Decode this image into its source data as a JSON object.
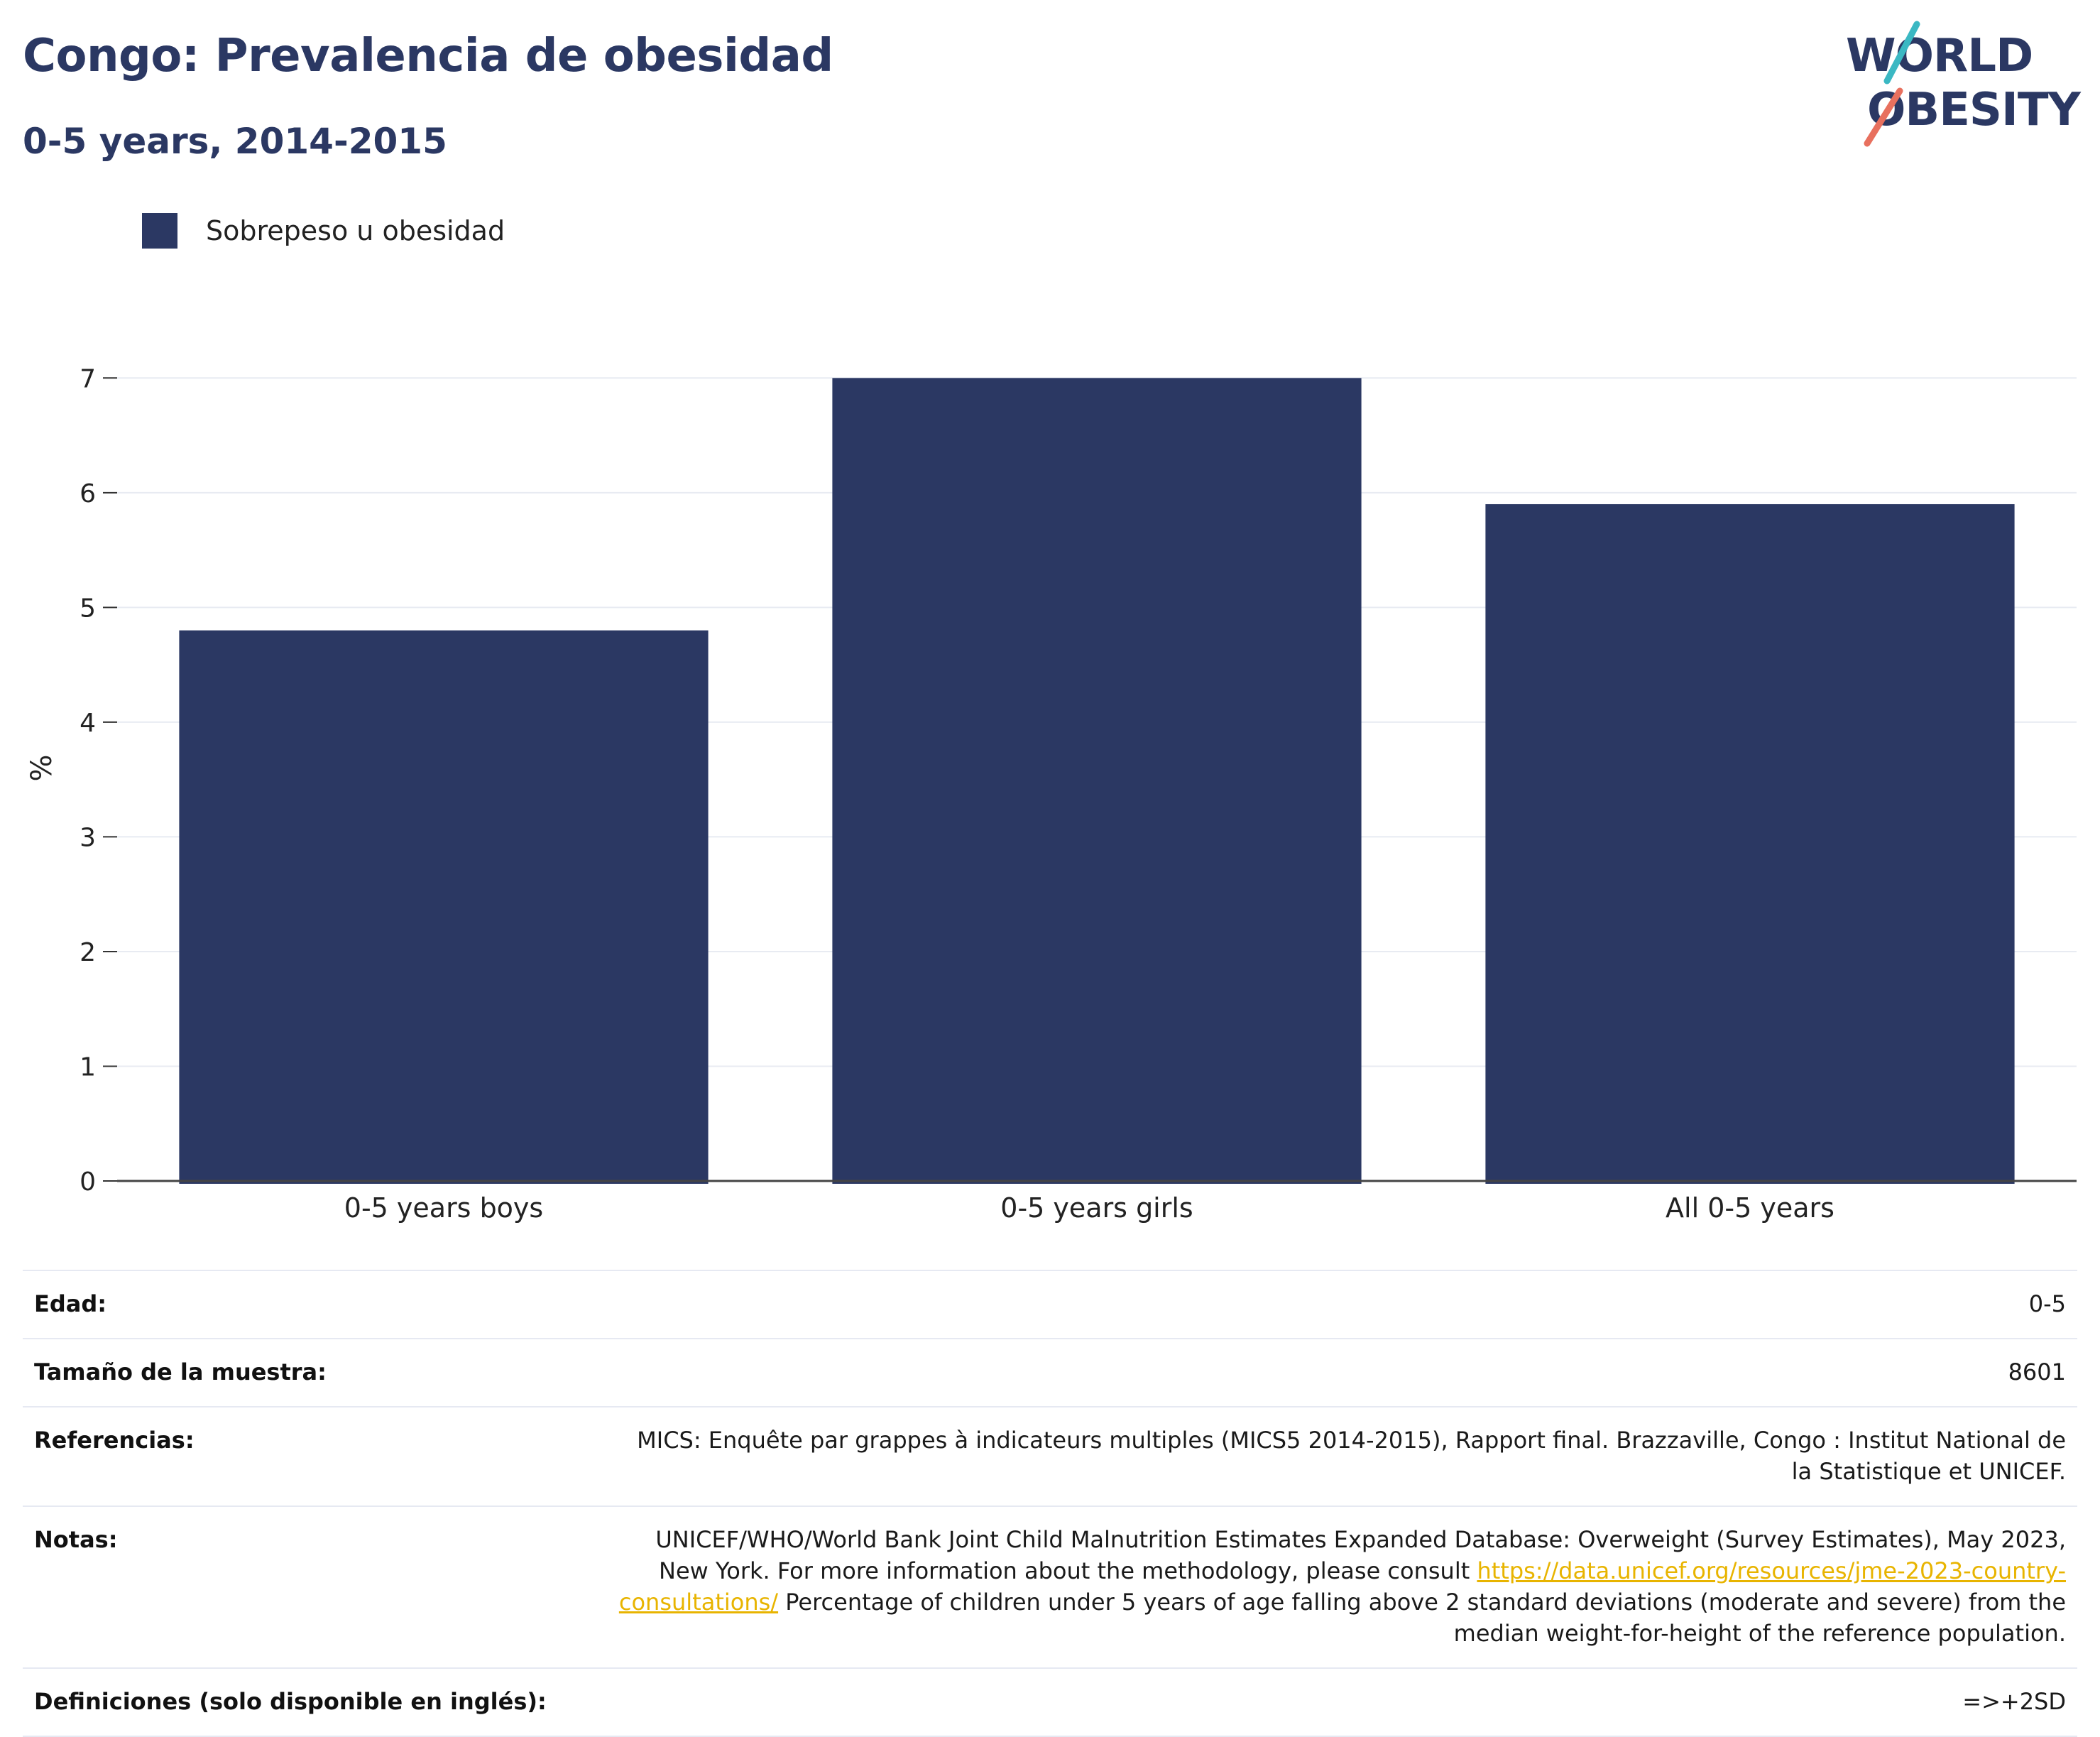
{
  "header": {
    "title": "Congo: Prevalencia de obesidad",
    "subtitle": "0-5 years, 2014-2015"
  },
  "logo": {
    "line1": "WORLD",
    "line2": "OBESITY",
    "colors": {
      "navy": "#2b3863",
      "teal": "#3bb8c3",
      "coral": "#e8705e"
    }
  },
  "chart_data": {
    "type": "bar",
    "categories": [
      "0-5 years boys",
      "0-5 years girls",
      "All 0-5 years"
    ],
    "series": [
      {
        "name": "Sobrepeso u obesidad",
        "values": [
          4.8,
          7.0,
          5.9
        ],
        "color": "#2b3863"
      }
    ],
    "title": "",
    "xlabel": "",
    "ylabel": "%",
    "ylim": [
      0,
      7.2
    ],
    "yticks": [
      0,
      1,
      2,
      3,
      4,
      5,
      6,
      7
    ],
    "grid": true,
    "legend": "top-left"
  },
  "info": {
    "rows": [
      {
        "label": "Edad:",
        "value": "0-5"
      },
      {
        "label": "Tamaño de la muestra:",
        "value": "8601"
      },
      {
        "label": "Referencias:",
        "value": "MICS: Enquête par grappes à indicateurs multiples (MICS5 2014-2015), Rapport final. Brazzaville, Congo : Institut National de la Statistique et UNICEF."
      },
      {
        "label": "Notas:",
        "value_before": "UNICEF/WHO/World Bank Joint Child Malnutrition Estimates Expanded Database: Overweight (Survey Estimates), May 2023, New York. For more information about the methodology, please consult ",
        "link": "https://data.unicef.org/resources/jme-2023-country-consultations/",
        "value_after": " Percentage of children under 5 years of age falling above 2 standard deviations (moderate and severe) from the median weight-for-height of the reference population."
      },
      {
        "label": "Definiciones (solo disponible en inglés):",
        "value": "=>+2SD"
      }
    ]
  }
}
